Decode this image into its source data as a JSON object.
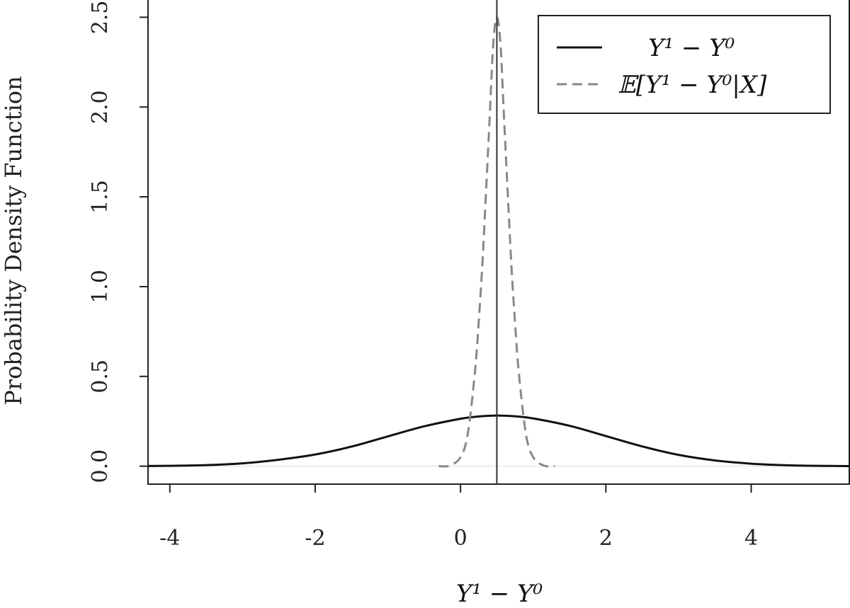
{
  "chart_data": {
    "type": "line",
    "title": "",
    "xlabel": "Y¹ − Y⁰",
    "ylabel": "Probability Density Function",
    "xlim": [
      -4.3,
      5.35
    ],
    "ylim": [
      -0.1,
      2.6
    ],
    "x_ticks": [
      -4,
      -2,
      0,
      2,
      4
    ],
    "x_tick_labels": [
      "-4",
      "-2",
      "0",
      "2",
      "4"
    ],
    "y_ticks": [
      0.0,
      0.5,
      1.0,
      1.5,
      2.0,
      2.5
    ],
    "y_tick_labels": [
      "0.0",
      "0.5",
      "1.0",
      "1.5",
      "2.0",
      "2.5"
    ],
    "grid": false,
    "legend_position": "top-right",
    "vertical_line_x": 0.5,
    "series": [
      {
        "name": "Y¹ − Y⁰",
        "style": "solid",
        "color": "#111111",
        "x": [
          -4.3,
          -4.0,
          -3.5,
          -3.0,
          -2.5,
          -2.0,
          -1.5,
          -1.0,
          -0.5,
          0.0,
          0.25,
          0.5,
          0.75,
          1.0,
          1.5,
          2.0,
          2.5,
          3.0,
          3.5,
          4.0,
          4.5,
          5.0,
          5.35
        ],
        "y": [
          0.001,
          0.002,
          0.006,
          0.016,
          0.036,
          0.065,
          0.109,
          0.166,
          0.222,
          0.264,
          0.277,
          0.282,
          0.278,
          0.266,
          0.225,
          0.168,
          0.11,
          0.063,
          0.032,
          0.014,
          0.005,
          0.0015,
          0.0006
        ]
      },
      {
        "name": "𝔼[Y¹ − Y⁰|X]",
        "style": "dashed",
        "color": "#888888",
        "x": [
          -0.3,
          -0.15,
          0.0,
          0.1,
          0.2,
          0.25,
          0.3,
          0.35,
          0.4,
          0.45,
          0.5,
          0.55,
          0.6,
          0.65,
          0.7,
          0.75,
          0.8,
          0.9,
          1.0,
          1.15,
          1.3
        ],
        "y": [
          0.0,
          0.003,
          0.05,
          0.18,
          0.53,
          0.8,
          1.12,
          1.52,
          1.93,
          2.35,
          2.5,
          2.35,
          1.93,
          1.52,
          1.12,
          0.8,
          0.53,
          0.18,
          0.05,
          0.003,
          0.0
        ]
      }
    ],
    "legend": {
      "entries": [
        {
          "label": "Y¹ − Y⁰",
          "style": "solid",
          "color": "#111111"
        },
        {
          "label": "𝔼[Y¹ − Y⁰|X]",
          "style": "dashed",
          "color": "#888888"
        }
      ]
    }
  }
}
